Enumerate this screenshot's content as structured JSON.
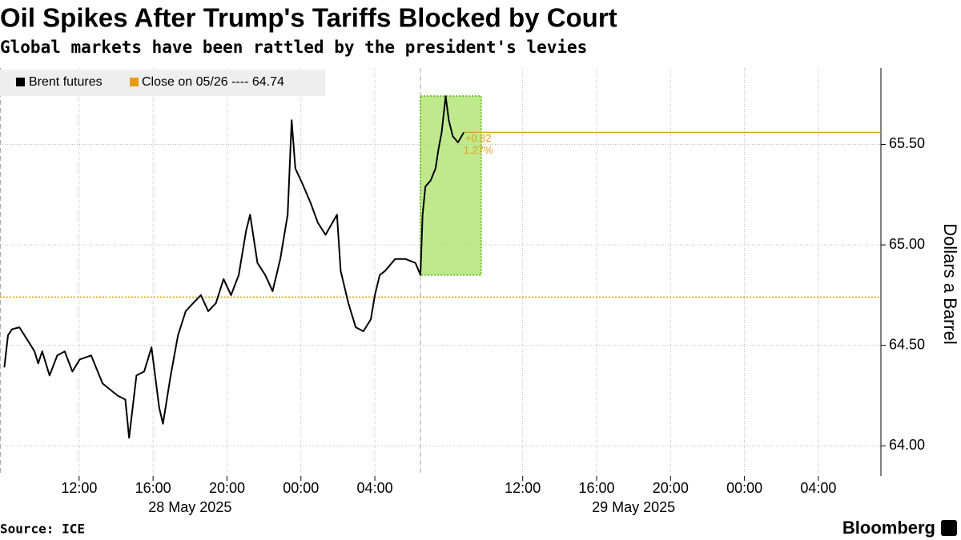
{
  "chart_data": {
    "type": "line",
    "title": "Oil Spikes After Trump's Tariffs Blocked by Court",
    "subtitle": "Global markets have been rattled by the president's levies",
    "y_label": "Dollars a Barrel",
    "source": "Source: ICE",
    "brand": "Bloomberg",
    "x": [
      "2025-05-28 07:57",
      "2025-05-28 08:09",
      "2025-05-28 08:22",
      "2025-05-28 08:46",
      "2025-05-28 09:11",
      "2025-05-28 09:35",
      "2025-05-28 09:47",
      "2025-05-28 10:00",
      "2025-05-28 10:24",
      "2025-05-28 10:49",
      "2025-05-28 11:13",
      "2025-05-28 11:38",
      "2025-05-28 12:02",
      "2025-05-28 12:39",
      "2025-05-28 13:16",
      "2025-05-28 14:05",
      "2025-05-28 14:30",
      "2025-05-28 14:42",
      "2025-05-28 15:06",
      "2025-05-28 15:31",
      "2025-05-28 15:55",
      "2025-05-28 16:20",
      "2025-05-28 16:32",
      "2025-05-28 16:57",
      "2025-05-28 17:21",
      "2025-05-28 17:46",
      "2025-05-28 18:10",
      "2025-05-28 18:35",
      "2025-05-28 18:59",
      "2025-05-28 19:24",
      "2025-05-28 19:49",
      "2025-05-28 20:13",
      "2025-05-28 20:38",
      "2025-05-28 21:02",
      "2025-05-28 21:15",
      "2025-05-28 21:39",
      "2025-05-28 22:04",
      "2025-05-28 22:28",
      "2025-05-28 22:53",
      "2025-05-28 23:17",
      "2025-05-28 23:30",
      "2025-05-28 23:42",
      "2025-05-29 00:06",
      "2025-05-29 00:31",
      "2025-05-29 00:55",
      "2025-05-29 01:20",
      "2025-05-29 01:57",
      "2025-05-29 02:09",
      "2025-05-29 02:34",
      "2025-05-29 02:58",
      "2025-05-29 03:23",
      "2025-05-29 03:47",
      "2025-05-29 04:00",
      "2025-05-29 04:16",
      "2025-05-29 04:33",
      "2025-05-29 05:06",
      "2025-05-29 05:39",
      "2025-05-29 06:12",
      "2025-05-29 06:28",
      "2025-05-29 06:35",
      "2025-05-29 06:44",
      "2025-05-29 07:01",
      "2025-05-29 07:17",
      "2025-05-29 07:27",
      "2025-05-29 07:37",
      "2025-05-29 07:50",
      "2025-05-29 08:00",
      "2025-05-29 08:13",
      "2025-05-29 08:30",
      "2025-05-29 08:49"
    ],
    "series": [
      {
        "name": "Brent futures",
        "color": "#000000",
        "values": [
          64.39,
          64.55,
          64.58,
          64.59,
          64.53,
          64.47,
          64.41,
          64.47,
          64.35,
          64.45,
          64.47,
          64.37,
          64.43,
          64.45,
          64.31,
          64.25,
          64.23,
          64.04,
          64.35,
          64.37,
          64.49,
          64.19,
          64.11,
          64.35,
          64.55,
          64.67,
          64.71,
          64.75,
          64.67,
          64.71,
          64.83,
          64.75,
          64.85,
          65.07,
          65.15,
          64.91,
          64.85,
          64.77,
          64.93,
          65.15,
          65.62,
          65.38,
          65.3,
          65.21,
          65.11,
          65.05,
          65.15,
          64.87,
          64.71,
          64.59,
          64.57,
          64.63,
          64.75,
          64.85,
          64.87,
          64.93,
          64.93,
          64.91,
          64.85,
          65.15,
          65.29,
          65.32,
          65.38,
          65.48,
          65.56,
          65.74,
          65.62,
          65.54,
          65.51,
          65.56
        ]
      }
    ],
    "reference_line": {
      "name": "Close on 05/26 ---- 64.74",
      "value": 64.74,
      "color": "#e69c12"
    },
    "last_value_color": "#d4a017",
    "highlight": {
      "from": "2025-05-29 06:28",
      "to": "2025-05-29 09:45",
      "color": "#a5e05c"
    },
    "annotations": [
      "+0.82",
      "1.27%"
    ],
    "annotation_color": "#e69c12",
    "xlim": [
      "2025-05-28 07:43",
      "2025-05-30 07:23"
    ],
    "xticks": [
      {
        "value": "2025-05-28 12:00",
        "label": "12:00"
      },
      {
        "value": "2025-05-28 16:00",
        "label": "16:00"
      },
      {
        "value": "2025-05-28 20:00",
        "label": "20:00"
      },
      {
        "value": "2025-05-29 00:00",
        "label": "00:00"
      },
      {
        "value": "2025-05-29 04:00",
        "label": "04:00"
      },
      {
        "value": "2025-05-29 12:00",
        "label": "12:00"
      },
      {
        "value": "2025-05-29 16:00",
        "label": "16:00"
      },
      {
        "value": "2025-05-29 20:00",
        "label": "20:00"
      },
      {
        "value": "2025-05-30 00:00",
        "label": "00:00"
      },
      {
        "value": "2025-05-30 04:00",
        "label": "04:00"
      }
    ],
    "date_labels": [
      {
        "value": "2025-05-28",
        "label": "28 May 2025"
      },
      {
        "value": "2025-05-29",
        "label": "29 May 2025"
      }
    ],
    "ylim": [
      63.85,
      65.88
    ],
    "yticks": [
      {
        "value": 64,
        "label": "64.00"
      },
      {
        "value": 64.5,
        "label": "64.50"
      },
      {
        "value": 65,
        "label": "65.00"
      },
      {
        "value": 65.5,
        "label": "65.50"
      }
    ],
    "grid": true,
    "legend": "top-left"
  }
}
